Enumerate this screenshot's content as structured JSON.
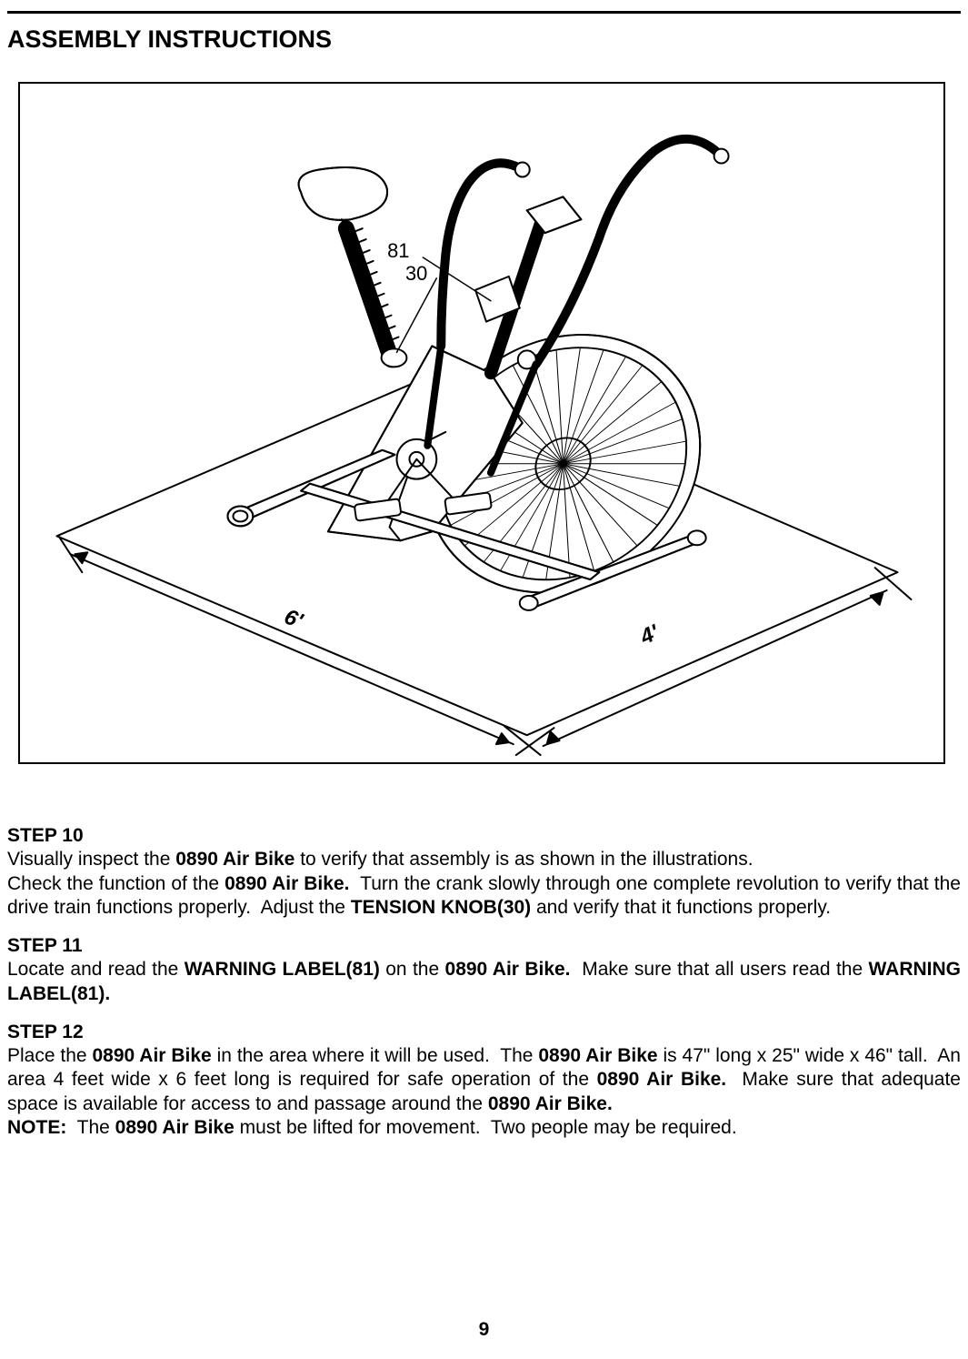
{
  "title": "ASSEMBLY INSTRUCTIONS",
  "pageNumber": "9",
  "diagram": {
    "callouts": {
      "a": "81",
      "b": "30"
    },
    "floorDims": {
      "long": "6'",
      "short": "4'"
    },
    "stroke": "#000000",
    "fill": "#ffffff"
  },
  "steps": [
    {
      "heading": "STEP 10",
      "body": "Visually inspect the <b>0890 Air Bike</b> to verify that assembly is as shown in the illustrations.<br>Check the function of the <b>0890 Air Bike.</b>&nbsp; Turn the crank slowly through one complete revolution to verify that the drive train functions properly.&nbsp; Adjust the <b>TENSION KNOB(30)</b> and verify that it functions properly."
    },
    {
      "heading": "STEP 11",
      "body": "Locate and read the <b>WARNING LABEL(81)</b> on the <b>0890 Air Bike.</b>&nbsp; Make sure that all users read the <b>WARNING LABEL(81).</b>"
    },
    {
      "heading": "STEP 12",
      "body": "Place the <b>0890 Air Bike</b> in the area where it will be used.&nbsp; The <b>0890 Air Bike</b> is 47\" long x 25\" wide x 46\" tall.&nbsp; An area 4 feet wide x 6 feet long is required for safe operation of the <b>0890 Air Bike.</b>&nbsp; Make sure that adequate space is available for access to and passage around the <b>0890 Air Bike.</b><br><b>NOTE:</b>&nbsp; The <b>0890 Air Bike</b> must be lifted for movement.&nbsp; Two people may be required."
    }
  ]
}
